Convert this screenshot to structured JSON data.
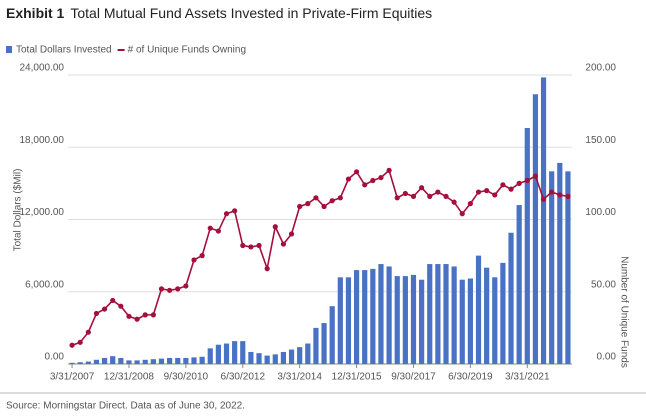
{
  "chart_data": {
    "type": "bar_line",
    "title_label": "Exhibit 1",
    "title": "Total Mutual Fund Assets Invested in Private-Firm Equities",
    "y_label": "Total Dollars ($Mil)",
    "y2_label": "Number of Unique Funds",
    "source": "Source: Morningstar Direct. Data as of June 30, 2022.",
    "categories": [
      "3/31/2007",
      null,
      null,
      null,
      null,
      null,
      null,
      "12/31/2008",
      null,
      null,
      null,
      null,
      null,
      null,
      "9/30/2010",
      null,
      null,
      null,
      null,
      null,
      null,
      "6/30/2012",
      null,
      null,
      null,
      null,
      null,
      null,
      "3/31/2014",
      null,
      null,
      null,
      null,
      null,
      null,
      "12/31/2015",
      null,
      null,
      null,
      null,
      null,
      null,
      "9/30/2017",
      null,
      null,
      null,
      null,
      null,
      null,
      "6/30/2019",
      null,
      null,
      null,
      null,
      null,
      null,
      "3/31/2021",
      null,
      null,
      null,
      null,
      null
    ],
    "series": [
      {
        "name": "Total Dollars Invested",
        "color": "#4a72c4",
        "kind": "bar",
        "values": [
          100,
          150,
          200,
          350,
          500,
          650,
          500,
          300,
          300,
          350,
          400,
          450,
          500,
          500,
          500,
          550,
          600,
          1300,
          1600,
          1700,
          1900,
          1900,
          1000,
          900,
          700,
          800,
          1000,
          1200,
          1400,
          1700,
          3000,
          3400,
          4800,
          7200,
          7200,
          7800,
          7800,
          7900,
          8300,
          8100,
          7300,
          7300,
          7400,
          7000,
          8300,
          8300,
          8300,
          8100,
          7000,
          7100,
          9000,
          8000,
          7200,
          8400,
          10900,
          13200,
          19600,
          22400,
          23800,
          16000,
          16700,
          16000
        ]
      },
      {
        "name": "# of Unique Funds Owning",
        "color": "#a50f3c",
        "kind": "line",
        "axis": "y2",
        "values": [
          13,
          15,
          22,
          35,
          38,
          44,
          40,
          33,
          31,
          34,
          34,
          52,
          51,
          52,
          54,
          72,
          75,
          94,
          92,
          104,
          106,
          82,
          81,
          82,
          66,
          95,
          83,
          90,
          109,
          111,
          115,
          109,
          113,
          115,
          128,
          133,
          124,
          127,
          129,
          134,
          115,
          118,
          116,
          122,
          116,
          119,
          116,
          112,
          104,
          111,
          119,
          120,
          117,
          124,
          121,
          125,
          127,
          130,
          114,
          119,
          117,
          116
        ]
      }
    ],
    "ylim": [
      0,
      24000
    ],
    "yticks": [
      {
        "value": 0,
        "label": "0.00"
      },
      {
        "value": 6000,
        "label": "6,000.00"
      },
      {
        "value": 12000,
        "label": "12,000.00"
      },
      {
        "value": 18000,
        "label": "18,000.00"
      },
      {
        "value": 24000,
        "label": "24,000.00"
      }
    ],
    "y2lim": [
      0,
      200
    ],
    "y2ticks": [
      {
        "value": 0,
        "label": "0.00"
      },
      {
        "value": 50,
        "label": "50.00"
      },
      {
        "value": 100,
        "label": "100.00"
      },
      {
        "value": 150,
        "label": "150.00"
      },
      {
        "value": 200,
        "label": "200.00"
      }
    ],
    "grid": true
  }
}
